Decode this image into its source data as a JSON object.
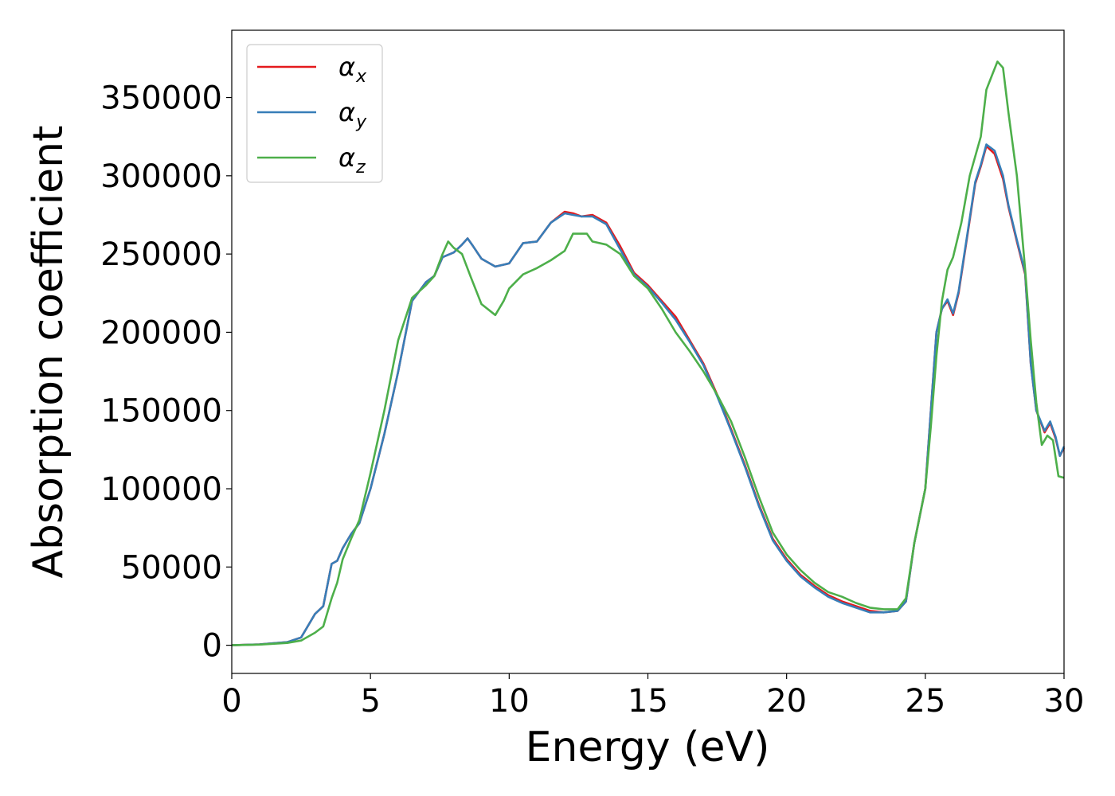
{
  "chart_data": {
    "type": "line",
    "title": "",
    "xlabel": "Energy (eV)",
    "ylabel": "Absorption coefficient",
    "xlim": [
      0,
      30
    ],
    "ylim": [
      -18000,
      393000
    ],
    "xticks": [
      0,
      5,
      10,
      15,
      20,
      25,
      30
    ],
    "xtick_labels": [
      "0",
      "5",
      "10",
      "15",
      "20",
      "25",
      "30"
    ],
    "yticks": [
      0,
      50000,
      100000,
      150000,
      200000,
      250000,
      300000,
      350000
    ],
    "ytick_labels": [
      "0",
      "50000",
      "100000",
      "150000",
      "200000",
      "250000",
      "300000",
      "350000"
    ],
    "grid": false,
    "legend_position": "top-left",
    "series": [
      {
        "name": "α_x",
        "legend_symbol": "α",
        "legend_subscript": "x",
        "color": "#e41a1c",
        "points": [
          [
            0,
            0
          ],
          [
            1,
            500
          ],
          [
            2,
            2000
          ],
          [
            2.5,
            5000
          ],
          [
            3,
            20000
          ],
          [
            3.3,
            25000
          ],
          [
            3.6,
            52000
          ],
          [
            3.8,
            54000
          ],
          [
            4,
            62000
          ],
          [
            4.3,
            71000
          ],
          [
            4.6,
            78000
          ],
          [
            5,
            100000
          ],
          [
            5.5,
            135000
          ],
          [
            6,
            175000
          ],
          [
            6.5,
            220000
          ],
          [
            7,
            232000
          ],
          [
            7.3,
            236000
          ],
          [
            7.6,
            248000
          ],
          [
            8,
            251000
          ],
          [
            8.3,
            256000
          ],
          [
            8.5,
            260000
          ],
          [
            8.7,
            255000
          ],
          [
            9,
            247000
          ],
          [
            9.5,
            242000
          ],
          [
            10,
            244000
          ],
          [
            10.5,
            257000
          ],
          [
            11,
            258000
          ],
          [
            11.5,
            270000
          ],
          [
            12,
            277000
          ],
          [
            12.3,
            276000
          ],
          [
            12.6,
            274000
          ],
          [
            13,
            275000
          ],
          [
            13.5,
            270000
          ],
          [
            14,
            255000
          ],
          [
            14.5,
            238000
          ],
          [
            15,
            230000
          ],
          [
            15.5,
            220000
          ],
          [
            16,
            210000
          ],
          [
            16.5,
            195000
          ],
          [
            17,
            180000
          ],
          [
            17.5,
            160000
          ],
          [
            18,
            138000
          ],
          [
            18.5,
            115000
          ],
          [
            19,
            90000
          ],
          [
            19.5,
            68000
          ],
          [
            20,
            55000
          ],
          [
            20.5,
            45000
          ],
          [
            21,
            38000
          ],
          [
            21.5,
            32000
          ],
          [
            22,
            28000
          ],
          [
            22.5,
            25000
          ],
          [
            23,
            22000
          ],
          [
            23.5,
            21000
          ],
          [
            24,
            22000
          ],
          [
            24.3,
            28000
          ],
          [
            24.6,
            65000
          ],
          [
            25,
            100000
          ],
          [
            25.2,
            150000
          ],
          [
            25.4,
            200000
          ],
          [
            25.6,
            215000
          ],
          [
            25.8,
            220000
          ],
          [
            26,
            211000
          ],
          [
            26.2,
            225000
          ],
          [
            26.5,
            260000
          ],
          [
            26.8,
            295000
          ],
          [
            27,
            306000
          ],
          [
            27.2,
            319000
          ],
          [
            27.5,
            314000
          ],
          [
            27.8,
            298000
          ],
          [
            28,
            280000
          ],
          [
            28.3,
            258000
          ],
          [
            28.6,
            237000
          ],
          [
            28.8,
            180000
          ],
          [
            29,
            150000
          ],
          [
            29.3,
            136000
          ],
          [
            29.5,
            142000
          ],
          [
            29.7,
            132000
          ],
          [
            29.85,
            121000
          ],
          [
            30,
            126000
          ]
        ]
      },
      {
        "name": "α_y",
        "legend_symbol": "α",
        "legend_subscript": "y",
        "color": "#377eb8",
        "points": [
          [
            0,
            0
          ],
          [
            1,
            500
          ],
          [
            2,
            2000
          ],
          [
            2.5,
            5000
          ],
          [
            3,
            20000
          ],
          [
            3.3,
            25000
          ],
          [
            3.6,
            52000
          ],
          [
            3.8,
            54000
          ],
          [
            4,
            62000
          ],
          [
            4.3,
            71000
          ],
          [
            4.6,
            78000
          ],
          [
            5,
            100000
          ],
          [
            5.5,
            135000
          ],
          [
            6,
            175000
          ],
          [
            6.5,
            220000
          ],
          [
            7,
            232000
          ],
          [
            7.3,
            236000
          ],
          [
            7.6,
            248000
          ],
          [
            8,
            251000
          ],
          [
            8.3,
            256000
          ],
          [
            8.5,
            260000
          ],
          [
            8.7,
            255000
          ],
          [
            9,
            247000
          ],
          [
            9.5,
            242000
          ],
          [
            10,
            244000
          ],
          [
            10.5,
            257000
          ],
          [
            11,
            258000
          ],
          [
            11.5,
            270000
          ],
          [
            12,
            276000
          ],
          [
            12.3,
            275000
          ],
          [
            12.6,
            274000
          ],
          [
            13,
            274000
          ],
          [
            13.5,
            269000
          ],
          [
            14,
            253000
          ],
          [
            14.5,
            237000
          ],
          [
            15,
            229000
          ],
          [
            15.5,
            219000
          ],
          [
            16,
            208000
          ],
          [
            16.5,
            194000
          ],
          [
            17,
            179000
          ],
          [
            17.5,
            159000
          ],
          [
            18,
            137000
          ],
          [
            18.5,
            114000
          ],
          [
            19,
            89000
          ],
          [
            19.5,
            67000
          ],
          [
            20,
            54000
          ],
          [
            20.5,
            44000
          ],
          [
            21,
            37000
          ],
          [
            21.5,
            31000
          ],
          [
            22,
            27000
          ],
          [
            22.5,
            24000
          ],
          [
            23,
            21000
          ],
          [
            23.5,
            21000
          ],
          [
            24,
            22000
          ],
          [
            24.3,
            28000
          ],
          [
            24.6,
            65000
          ],
          [
            25,
            100000
          ],
          [
            25.2,
            150000
          ],
          [
            25.4,
            200000
          ],
          [
            25.6,
            215000
          ],
          [
            25.8,
            221000
          ],
          [
            26,
            212000
          ],
          [
            26.2,
            226000
          ],
          [
            26.5,
            261000
          ],
          [
            26.8,
            296000
          ],
          [
            27,
            307000
          ],
          [
            27.2,
            320000
          ],
          [
            27.5,
            316000
          ],
          [
            27.8,
            300000
          ],
          [
            28,
            281000
          ],
          [
            28.3,
            259000
          ],
          [
            28.6,
            238000
          ],
          [
            28.8,
            180000
          ],
          [
            29,
            150000
          ],
          [
            29.3,
            137000
          ],
          [
            29.5,
            143000
          ],
          [
            29.7,
            133000
          ],
          [
            29.85,
            121000
          ],
          [
            30,
            127000
          ]
        ]
      },
      {
        "name": "α_z",
        "legend_symbol": "α",
        "legend_subscript": "z",
        "color": "#4daf4a",
        "points": [
          [
            0,
            0
          ],
          [
            1,
            400
          ],
          [
            2,
            1500
          ],
          [
            2.5,
            3000
          ],
          [
            3,
            8000
          ],
          [
            3.3,
            12000
          ],
          [
            3.6,
            30000
          ],
          [
            3.8,
            40000
          ],
          [
            4,
            55000
          ],
          [
            4.3,
            68000
          ],
          [
            4.6,
            80000
          ],
          [
            5,
            110000
          ],
          [
            5.5,
            150000
          ],
          [
            6,
            195000
          ],
          [
            6.5,
            222000
          ],
          [
            7,
            230000
          ],
          [
            7.3,
            236000
          ],
          [
            7.6,
            250000
          ],
          [
            7.8,
            258000
          ],
          [
            8,
            254000
          ],
          [
            8.3,
            250000
          ],
          [
            8.6,
            236000
          ],
          [
            9,
            218000
          ],
          [
            9.5,
            211000
          ],
          [
            9.8,
            220000
          ],
          [
            10,
            228000
          ],
          [
            10.5,
            237000
          ],
          [
            11,
            241000
          ],
          [
            11.5,
            246000
          ],
          [
            12,
            252000
          ],
          [
            12.3,
            263000
          ],
          [
            12.8,
            263000
          ],
          [
            13,
            258000
          ],
          [
            13.5,
            256000
          ],
          [
            14,
            250000
          ],
          [
            14.5,
            236000
          ],
          [
            15,
            228000
          ],
          [
            15.5,
            215000
          ],
          [
            16,
            200000
          ],
          [
            16.5,
            188000
          ],
          [
            17,
            175000
          ],
          [
            17.5,
            160000
          ],
          [
            18,
            143000
          ],
          [
            18.5,
            120000
          ],
          [
            19,
            95000
          ],
          [
            19.5,
            72000
          ],
          [
            20,
            58000
          ],
          [
            20.5,
            48000
          ],
          [
            21,
            40000
          ],
          [
            21.5,
            34000
          ],
          [
            22,
            31000
          ],
          [
            22.5,
            27000
          ],
          [
            23,
            24000
          ],
          [
            23.5,
            23000
          ],
          [
            24,
            23000
          ],
          [
            24.3,
            30000
          ],
          [
            24.6,
            65000
          ],
          [
            25,
            100000
          ],
          [
            25.2,
            140000
          ],
          [
            25.4,
            185000
          ],
          [
            25.6,
            220000
          ],
          [
            25.8,
            240000
          ],
          [
            26,
            248000
          ],
          [
            26.3,
            270000
          ],
          [
            26.6,
            300000
          ],
          [
            27,
            325000
          ],
          [
            27.2,
            355000
          ],
          [
            27.4,
            364000
          ],
          [
            27.6,
            373000
          ],
          [
            27.8,
            369000
          ],
          [
            28,
            340000
          ],
          [
            28.3,
            300000
          ],
          [
            28.6,
            240000
          ],
          [
            28.8,
            195000
          ],
          [
            29,
            155000
          ],
          [
            29.2,
            128000
          ],
          [
            29.4,
            134000
          ],
          [
            29.6,
            131000
          ],
          [
            29.8,
            108000
          ],
          [
            30,
            107000
          ]
        ]
      }
    ]
  }
}
